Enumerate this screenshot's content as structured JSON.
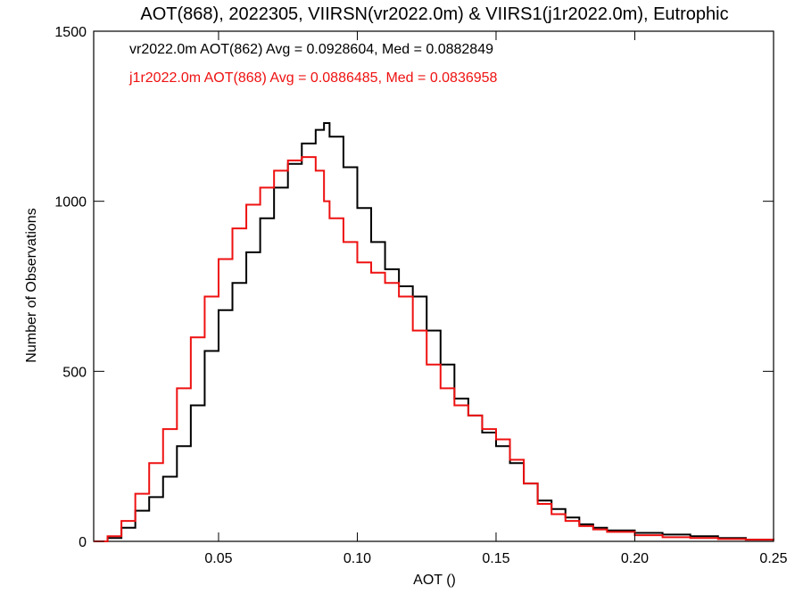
{
  "chart_data": {
    "type": "line",
    "title": "AOT(868), 2022305, VIIRSN(vr2022.0m) & VIIRS1(j1r2022.0m), Eutrophic",
    "xlabel": "AOT ()",
    "ylabel": "Number of Observations",
    "xlim": [
      0.005,
      0.25
    ],
    "ylim": [
      0,
      1500
    ],
    "x_ticks": [
      0.05,
      0.1,
      0.15,
      0.2,
      0.25
    ],
    "x_tick_labels": [
      "0.05",
      "0.10",
      "0.15",
      "0.20",
      "0.25"
    ],
    "y_ticks": [
      0,
      500,
      1000,
      1500
    ],
    "y_tick_labels": [
      "0",
      "500",
      "1000",
      "1500"
    ],
    "annotations": [
      {
        "text": "vr2022.0m AOT(862) Avg = 0.0928604, Med = 0.0882849",
        "color": "#000000"
      },
      {
        "text": "j1r2022.0m AOT(868) Avg = 0.0886485, Med = 0.0836958",
        "color": "#ee1111"
      }
    ],
    "series": [
      {
        "color": "#000000",
        "x": [
          0.005,
          0.01,
          0.015,
          0.02,
          0.025,
          0.03,
          0.035,
          0.04,
          0.045,
          0.05,
          0.055,
          0.06,
          0.065,
          0.07,
          0.075,
          0.08,
          0.085,
          0.088,
          0.09,
          0.095,
          0.1,
          0.105,
          0.11,
          0.115,
          0.12,
          0.125,
          0.13,
          0.135,
          0.14,
          0.145,
          0.15,
          0.155,
          0.16,
          0.165,
          0.17,
          0.175,
          0.18,
          0.185,
          0.19,
          0.2,
          0.21,
          0.22,
          0.23,
          0.24,
          0.25
        ],
        "y": [
          0,
          10,
          40,
          90,
          130,
          190,
          280,
          400,
          560,
          680,
          760,
          850,
          950,
          1040,
          1110,
          1170,
          1210,
          1230,
          1190,
          1100,
          980,
          880,
          800,
          750,
          720,
          620,
          520,
          420,
          370,
          320,
          280,
          230,
          170,
          120,
          95,
          70,
          50,
          40,
          32,
          25,
          20,
          15,
          10,
          5,
          3
        ]
      },
      {
        "color": "#ee1111",
        "x": [
          0.005,
          0.01,
          0.015,
          0.02,
          0.025,
          0.03,
          0.035,
          0.04,
          0.045,
          0.05,
          0.055,
          0.06,
          0.065,
          0.07,
          0.075,
          0.08,
          0.085,
          0.088,
          0.09,
          0.095,
          0.1,
          0.105,
          0.11,
          0.115,
          0.12,
          0.125,
          0.13,
          0.135,
          0.14,
          0.145,
          0.15,
          0.155,
          0.16,
          0.165,
          0.17,
          0.175,
          0.18,
          0.185,
          0.19,
          0.2,
          0.21,
          0.22,
          0.23,
          0.24,
          0.25
        ],
        "y": [
          0,
          15,
          60,
          140,
          230,
          330,
          450,
          600,
          720,
          830,
          920,
          990,
          1040,
          1090,
          1120,
          1130,
          1090,
          1000,
          950,
          880,
          820,
          790,
          760,
          720,
          620,
          520,
          450,
          400,
          370,
          330,
          300,
          240,
          170,
          110,
          80,
          60,
          45,
          35,
          28,
          18,
          12,
          10,
          7,
          5,
          3
        ]
      }
    ]
  }
}
